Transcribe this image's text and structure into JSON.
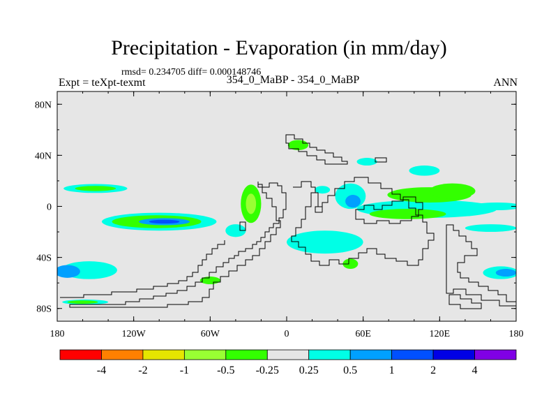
{
  "title": "Precipitation - Evaporation (in mm/day)",
  "stats": "rmsd= 0.234705 diff= 0.000148746",
  "left_label": "Expt = teXpt-texmt",
  "center_label": "354_0_MaBP - 354_0_MaBP",
  "right_label": "ANN",
  "colors": {
    "background": "#e6e6e6",
    "coastline": "#000000"
  },
  "map": {
    "lon_range": [
      -180,
      180
    ],
    "lat_range": [
      -90,
      90
    ],
    "lon_ticks": [
      {
        "value": -180,
        "label": "180"
      },
      {
        "value": -120,
        "label": "120W"
      },
      {
        "value": -60,
        "label": "60W"
      },
      {
        "value": 0,
        "label": "0"
      },
      {
        "value": 60,
        "label": "60E"
      },
      {
        "value": 120,
        "label": "120E"
      },
      {
        "value": 180,
        "label": "180"
      }
    ],
    "lat_ticks": [
      {
        "value": 80,
        "label": "80N"
      },
      {
        "value": 40,
        "label": "40N"
      },
      {
        "value": 0,
        "label": "0"
      },
      {
        "value": -40,
        "label": "40S"
      },
      {
        "value": -80,
        "label": "80S"
      }
    ],
    "anomalies": [
      {
        "lon": -150,
        "lat": 14,
        "rlon": 25,
        "rlat": 3.5,
        "level": 0.375
      },
      {
        "lon": -150,
        "lat": 14,
        "rlon": 16,
        "rlat": 2,
        "level": -0.375
      },
      {
        "lon": -100,
        "lat": -12,
        "rlon": 45,
        "rlat": 7,
        "level": 0.375
      },
      {
        "lon": -102,
        "lat": -12,
        "rlon": 35,
        "rlat": 5,
        "level": -0.375
      },
      {
        "lon": -96,
        "lat": -12,
        "rlon": 20,
        "rlat": 2.8,
        "level": 0.75
      },
      {
        "lon": -96,
        "lat": -12,
        "rlon": 12,
        "rlat": 1.5,
        "level": 1.5
      },
      {
        "lon": -155,
        "lat": -50,
        "rlon": 22,
        "rlat": 7,
        "level": 0.375
      },
      {
        "lon": -172,
        "lat": -51,
        "rlon": 10,
        "rlat": 5,
        "level": 0.75
      },
      {
        "lon": -158,
        "lat": -75,
        "rlon": 18,
        "rlat": 2,
        "level": 0.375
      },
      {
        "lon": -160,
        "lat": -75,
        "rlon": 12,
        "rlat": 1.3,
        "level": -0.375
      },
      {
        "lon": -28,
        "lat": 2,
        "rlon": 8,
        "rlat": 15,
        "level": -0.375
      },
      {
        "lon": -28,
        "lat": 2,
        "rlon": 4,
        "rlat": 8,
        "level": -0.75
      },
      {
        "lon": -40,
        "lat": -19,
        "rlon": 8,
        "rlat": 5,
        "level": 0.375
      },
      {
        "lon": 9,
        "lat": 48,
        "rlon": 8,
        "rlat": 4,
        "level": -0.375
      },
      {
        "lon": 28,
        "lat": 13,
        "rlon": 6,
        "rlat": 3,
        "level": 0.375
      },
      {
        "lon": 50,
        "lat": 8,
        "rlon": 12,
        "rlat": 10,
        "level": 0.375
      },
      {
        "lon": 52,
        "lat": 4,
        "rlon": 6,
        "rlat": 5,
        "level": 0.75
      },
      {
        "lon": 110,
        "lat": -2,
        "rlon": 55,
        "rlat": 7,
        "level": 0.375
      },
      {
        "lon": 112,
        "lat": 9,
        "rlon": 33,
        "rlat": 6,
        "level": -0.375
      },
      {
        "lon": 95,
        "lat": -6,
        "rlon": 30,
        "rlat": 4,
        "level": -0.375
      },
      {
        "lon": 30,
        "lat": -28,
        "rlon": 30,
        "rlat": 9,
        "level": 0.375
      },
      {
        "lon": 50,
        "lat": -45,
        "rlon": 6,
        "rlat": 4,
        "level": -0.375
      },
      {
        "lon": 165,
        "lat": 0,
        "rlon": 20,
        "rlat": 3,
        "level": 0.375
      },
      {
        "lon": 160,
        "lat": -17,
        "rlon": 20,
        "rlat": 3,
        "level": 0.375
      },
      {
        "lon": 168,
        "lat": -52,
        "rlon": 14,
        "rlat": 5,
        "level": 0.375
      },
      {
        "lon": 172,
        "lat": -52,
        "rlon": 8,
        "rlat": 3,
        "level": 0.75
      },
      {
        "lon": 108,
        "lat": 28,
        "rlon": 12,
        "rlat": 4,
        "level": 0.375
      },
      {
        "lon": 63,
        "lat": 35,
        "rlon": 8,
        "rlat": 3,
        "level": 0.375
      },
      {
        "lon": 130,
        "lat": 12,
        "rlon": 18,
        "rlat": 6,
        "level": -0.375
      },
      {
        "lon": -60,
        "lat": -58,
        "rlon": 8,
        "rlat": 3,
        "level": -0.375
      }
    ]
  },
  "colorbar": {
    "colors": [
      "#ff0000",
      "#ff8000",
      "#e6e600",
      "#99ff33",
      "#33ff00",
      "#e6e6e6",
      "#00ffe6",
      "#00a0ff",
      "#0050ff",
      "#0000e6",
      "#8000e6"
    ],
    "labels": [
      "-4",
      "-2",
      "-1",
      "-0.5",
      "-0.25",
      "0.25",
      "0.5",
      "1",
      "2",
      "4"
    ]
  }
}
